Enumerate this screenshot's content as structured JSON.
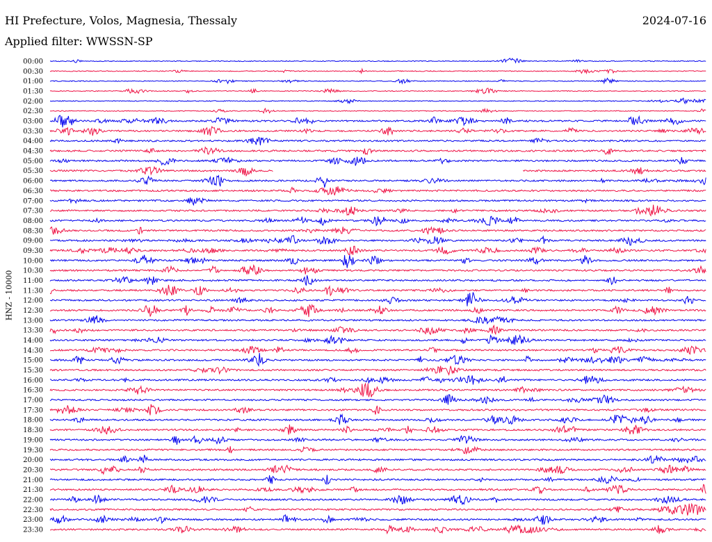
{
  "header": {
    "title": "HI Prefecture, Volos, Magnesia, Thessaly",
    "date": "2024-07-16",
    "filter": "Applied filter: WWSSN-SP"
  },
  "chart_data": {
    "type": "line",
    "ylabel": "HNZ - 10000",
    "colors": {
      "even": "#0000ee",
      "odd": "#ee1144"
    },
    "rows": [
      {
        "time": "00:00",
        "end": 1
      },
      {
        "time": "00:30",
        "end": 1
      },
      {
        "time": "01:00",
        "end": 1
      },
      {
        "time": "01:30",
        "end": 1
      },
      {
        "time": "02:00",
        "end": 1
      },
      {
        "time": "02:30",
        "end": 1
      },
      {
        "time": "03:00",
        "end": 1
      },
      {
        "time": "03:30",
        "end": 1
      },
      {
        "time": "04:00",
        "end": 1
      },
      {
        "time": "04:30",
        "end": 1
      },
      {
        "time": "05:00",
        "end": 1
      },
      {
        "time": "05:30",
        "end": 1,
        "gap": [
          0.34,
          0.72
        ]
      },
      {
        "time": "06:00",
        "end": 1
      },
      {
        "time": "06:30",
        "end": 1
      },
      {
        "time": "07:00",
        "end": 1
      },
      {
        "time": "07:30",
        "end": 1
      },
      {
        "time": "08:00",
        "end": 1
      },
      {
        "time": "08:30",
        "end": 1
      },
      {
        "time": "09:00",
        "end": 1
      },
      {
        "time": "09:30",
        "end": 1
      },
      {
        "time": "10:00",
        "end": 1
      },
      {
        "time": "10:30",
        "end": 1
      },
      {
        "time": "11:00",
        "end": 1
      },
      {
        "time": "11:30",
        "end": 1
      },
      {
        "time": "12:00",
        "end": 1
      },
      {
        "time": "12:30",
        "end": 1
      },
      {
        "time": "13:00",
        "end": 1
      },
      {
        "time": "13:30",
        "end": 1
      },
      {
        "time": "14:00",
        "end": 1
      },
      {
        "time": "14:30",
        "end": 1
      },
      {
        "time": "15:00",
        "end": 1
      },
      {
        "time": "15:30",
        "end": 1
      },
      {
        "time": "16:00",
        "end": 1
      },
      {
        "time": "16:30",
        "end": 1
      },
      {
        "time": "17:00",
        "end": 1
      },
      {
        "time": "17:30",
        "end": 1
      },
      {
        "time": "18:00",
        "end": 1
      },
      {
        "time": "18:30",
        "end": 1
      },
      {
        "time": "19:00",
        "end": 1
      },
      {
        "time": "19:30",
        "end": 1
      },
      {
        "time": "20:00",
        "end": 1
      },
      {
        "time": "20:30",
        "end": 1
      },
      {
        "time": "21:00",
        "end": 1
      },
      {
        "time": "21:30",
        "end": 1
      },
      {
        "time": "22:00",
        "end": 1
      },
      {
        "time": "22:30",
        "end": 1
      },
      {
        "time": "23:00",
        "end": 1
      },
      {
        "time": "23:30",
        "end": 1
      }
    ]
  }
}
